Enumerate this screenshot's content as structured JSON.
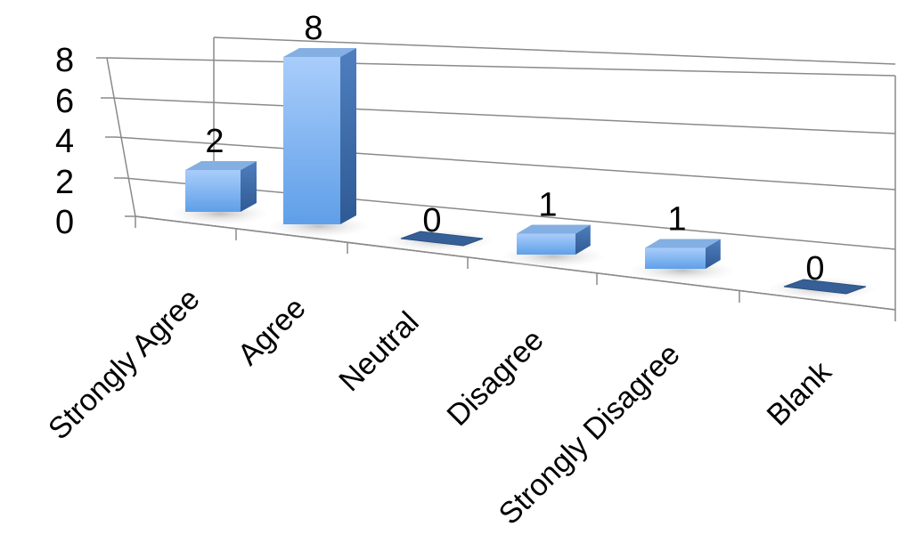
{
  "chart_data": {
    "type": "bar",
    "style": "3d-column",
    "title": "",
    "xlabel": "",
    "ylabel": "",
    "categories": [
      "Strongly Agree",
      "Agree",
      "Neutral",
      "Disagree",
      "Strongly Disagree",
      "Blank"
    ],
    "values": [
      2,
      8,
      0,
      1,
      1,
      0
    ],
    "data_labels": [
      "2",
      "8",
      "0",
      "1",
      "1",
      "0"
    ],
    "yticks": [
      "0",
      "2",
      "4",
      "6",
      "8"
    ],
    "ylim": [
      0,
      8
    ],
    "grid": true,
    "legend": "none",
    "colors": {
      "bar_front_top": "#a9cdfb",
      "bar_front_bottom": "#5f9fe8",
      "bar_top": "#7ea9dc",
      "bar_side": "#3c6aa6",
      "grid": "#7a7a7a"
    }
  }
}
